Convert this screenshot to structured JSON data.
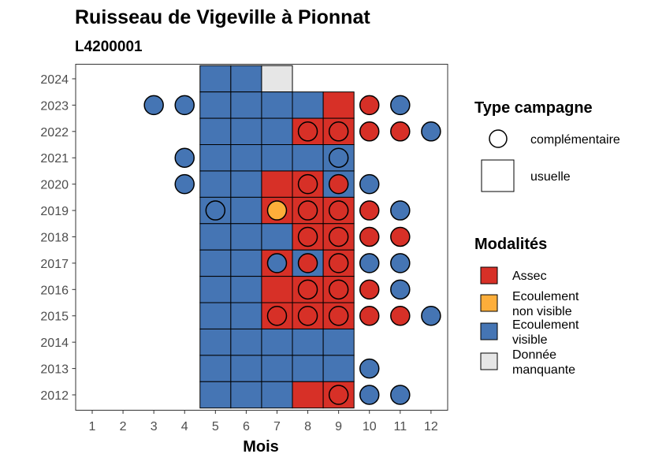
{
  "chart_data": {
    "type": "heatmap",
    "title": "Ruisseau de Vigeville à Pionnat",
    "subtitle": "L4200001",
    "xlabel": "Mois",
    "ylabel": "",
    "x_ticks": [
      "1",
      "2",
      "3",
      "4",
      "5",
      "6",
      "7",
      "8",
      "9",
      "10",
      "11",
      "12"
    ],
    "y_ticks": [
      "2012",
      "2013",
      "2014",
      "2015",
      "2016",
      "2017",
      "2018",
      "2019",
      "2020",
      "2021",
      "2022",
      "2023",
      "2024"
    ],
    "grid": false,
    "legend_position": "right",
    "colors": {
      "Assec": "#d73027",
      "Ecoulement non visible": "#fdae3a",
      "Ecoulement visible": "#4575b4",
      "Donnée manquante": "#e6e6e6"
    },
    "legend_shape": {
      "title": "Type campagne",
      "items": [
        "complémentaire",
        "usuelle"
      ]
    },
    "legend_fill": {
      "title": "Modalités",
      "items": [
        {
          "key": "Assec",
          "lines": [
            "Assec"
          ]
        },
        {
          "key": "Ecoulement non visible",
          "lines": [
            "Ecoulement",
            "non visible"
          ]
        },
        {
          "key": "Ecoulement visible",
          "lines": [
            "Ecoulement",
            "visible"
          ]
        },
        {
          "key": "Donnée manquante",
          "lines": [
            "Donnée",
            "manquante"
          ]
        }
      ]
    },
    "usuelle": [
      {
        "year": 2024,
        "month": 5,
        "value": "Ecoulement visible"
      },
      {
        "year": 2024,
        "month": 6,
        "value": "Ecoulement visible"
      },
      {
        "year": 2024,
        "month": 7,
        "value": "Donnée manquante"
      },
      {
        "year": 2023,
        "month": 5,
        "value": "Ecoulement visible"
      },
      {
        "year": 2023,
        "month": 6,
        "value": "Ecoulement visible"
      },
      {
        "year": 2023,
        "month": 7,
        "value": "Ecoulement visible"
      },
      {
        "year": 2023,
        "month": 8,
        "value": "Ecoulement visible"
      },
      {
        "year": 2023,
        "month": 9,
        "value": "Assec"
      },
      {
        "year": 2022,
        "month": 5,
        "value": "Ecoulement visible"
      },
      {
        "year": 2022,
        "month": 6,
        "value": "Ecoulement visible"
      },
      {
        "year": 2022,
        "month": 7,
        "value": "Ecoulement visible"
      },
      {
        "year": 2022,
        "month": 8,
        "value": "Assec"
      },
      {
        "year": 2022,
        "month": 9,
        "value": "Assec"
      },
      {
        "year": 2021,
        "month": 5,
        "value": "Ecoulement visible"
      },
      {
        "year": 2021,
        "month": 6,
        "value": "Ecoulement visible"
      },
      {
        "year": 2021,
        "month": 7,
        "value": "Ecoulement visible"
      },
      {
        "year": 2021,
        "month": 8,
        "value": "Ecoulement visible"
      },
      {
        "year": 2021,
        "month": 9,
        "value": "Ecoulement visible"
      },
      {
        "year": 2020,
        "month": 5,
        "value": "Ecoulement visible"
      },
      {
        "year": 2020,
        "month": 6,
        "value": "Ecoulement visible"
      },
      {
        "year": 2020,
        "month": 7,
        "value": "Assec"
      },
      {
        "year": 2020,
        "month": 8,
        "value": "Assec"
      },
      {
        "year": 2020,
        "month": 9,
        "value": "Ecoulement visible"
      },
      {
        "year": 2019,
        "month": 5,
        "value": "Ecoulement visible"
      },
      {
        "year": 2019,
        "month": 6,
        "value": "Ecoulement visible"
      },
      {
        "year": 2019,
        "month": 7,
        "value": "Assec"
      },
      {
        "year": 2019,
        "month": 8,
        "value": "Assec"
      },
      {
        "year": 2019,
        "month": 9,
        "value": "Assec"
      },
      {
        "year": 2018,
        "month": 5,
        "value": "Ecoulement visible"
      },
      {
        "year": 2018,
        "month": 6,
        "value": "Ecoulement visible"
      },
      {
        "year": 2018,
        "month": 7,
        "value": "Ecoulement visible"
      },
      {
        "year": 2018,
        "month": 8,
        "value": "Assec"
      },
      {
        "year": 2018,
        "month": 9,
        "value": "Assec"
      },
      {
        "year": 2017,
        "month": 5,
        "value": "Ecoulement visible"
      },
      {
        "year": 2017,
        "month": 6,
        "value": "Ecoulement visible"
      },
      {
        "year": 2017,
        "month": 7,
        "value": "Assec"
      },
      {
        "year": 2017,
        "month": 8,
        "value": "Ecoulement visible"
      },
      {
        "year": 2017,
        "month": 9,
        "value": "Assec"
      },
      {
        "year": 2016,
        "month": 5,
        "value": "Ecoulement visible"
      },
      {
        "year": 2016,
        "month": 6,
        "value": "Ecoulement visible"
      },
      {
        "year": 2016,
        "month": 7,
        "value": "Assec"
      },
      {
        "year": 2016,
        "month": 8,
        "value": "Assec"
      },
      {
        "year": 2016,
        "month": 9,
        "value": "Assec"
      },
      {
        "year": 2015,
        "month": 5,
        "value": "Ecoulement visible"
      },
      {
        "year": 2015,
        "month": 6,
        "value": "Ecoulement visible"
      },
      {
        "year": 2015,
        "month": 7,
        "value": "Assec"
      },
      {
        "year": 2015,
        "month": 8,
        "value": "Assec"
      },
      {
        "year": 2015,
        "month": 9,
        "value": "Assec"
      },
      {
        "year": 2014,
        "month": 5,
        "value": "Ecoulement visible"
      },
      {
        "year": 2014,
        "month": 6,
        "value": "Ecoulement visible"
      },
      {
        "year": 2014,
        "month": 7,
        "value": "Ecoulement visible"
      },
      {
        "year": 2014,
        "month": 8,
        "value": "Ecoulement visible"
      },
      {
        "year": 2014,
        "month": 9,
        "value": "Ecoulement visible"
      },
      {
        "year": 2013,
        "month": 5,
        "value": "Ecoulement visible"
      },
      {
        "year": 2013,
        "month": 6,
        "value": "Ecoulement visible"
      },
      {
        "year": 2013,
        "month": 7,
        "value": "Ecoulement visible"
      },
      {
        "year": 2013,
        "month": 8,
        "value": "Ecoulement visible"
      },
      {
        "year": 2013,
        "month": 9,
        "value": "Ecoulement visible"
      },
      {
        "year": 2012,
        "month": 5,
        "value": "Ecoulement visible"
      },
      {
        "year": 2012,
        "month": 6,
        "value": "Ecoulement visible"
      },
      {
        "year": 2012,
        "month": 7,
        "value": "Ecoulement visible"
      },
      {
        "year": 2012,
        "month": 8,
        "value": "Assec"
      },
      {
        "year": 2012,
        "month": 9,
        "value": "Assec"
      }
    ],
    "complementaire": [
      {
        "year": 2023,
        "month": 3,
        "value": "Ecoulement visible"
      },
      {
        "year": 2023,
        "month": 4,
        "value": "Ecoulement visible"
      },
      {
        "year": 2023,
        "month": 10,
        "value": "Assec"
      },
      {
        "year": 2023,
        "month": 11,
        "value": "Ecoulement visible"
      },
      {
        "year": 2022,
        "month": 8,
        "value": "Assec"
      },
      {
        "year": 2022,
        "month": 9,
        "value": "Assec"
      },
      {
        "year": 2022,
        "month": 10,
        "value": "Assec"
      },
      {
        "year": 2022,
        "month": 11,
        "value": "Assec"
      },
      {
        "year": 2022,
        "month": 12,
        "value": "Ecoulement visible"
      },
      {
        "year": 2021,
        "month": 4,
        "value": "Ecoulement visible"
      },
      {
        "year": 2021,
        "month": 9,
        "value": "Ecoulement visible"
      },
      {
        "year": 2020,
        "month": 4,
        "value": "Ecoulement visible"
      },
      {
        "year": 2020,
        "month": 8,
        "value": "Assec"
      },
      {
        "year": 2020,
        "month": 9,
        "value": "Assec"
      },
      {
        "year": 2020,
        "month": 10,
        "value": "Ecoulement visible"
      },
      {
        "year": 2019,
        "month": 5,
        "value": "Ecoulement visible"
      },
      {
        "year": 2019,
        "month": 7,
        "value": "Ecoulement non visible"
      },
      {
        "year": 2019,
        "month": 8,
        "value": "Assec"
      },
      {
        "year": 2019,
        "month": 9,
        "value": "Assec"
      },
      {
        "year": 2019,
        "month": 10,
        "value": "Assec"
      },
      {
        "year": 2019,
        "month": 11,
        "value": "Ecoulement visible"
      },
      {
        "year": 2018,
        "month": 8,
        "value": "Assec"
      },
      {
        "year": 2018,
        "month": 9,
        "value": "Assec"
      },
      {
        "year": 2018,
        "month": 10,
        "value": "Assec"
      },
      {
        "year": 2018,
        "month": 11,
        "value": "Assec"
      },
      {
        "year": 2017,
        "month": 7,
        "value": "Ecoulement visible"
      },
      {
        "year": 2017,
        "month": 8,
        "value": "Assec"
      },
      {
        "year": 2017,
        "month": 9,
        "value": "Assec"
      },
      {
        "year": 2017,
        "month": 10,
        "value": "Ecoulement visible"
      },
      {
        "year": 2017,
        "month": 11,
        "value": "Ecoulement visible"
      },
      {
        "year": 2016,
        "month": 8,
        "value": "Assec"
      },
      {
        "year": 2016,
        "month": 9,
        "value": "Assec"
      },
      {
        "year": 2016,
        "month": 10,
        "value": "Assec"
      },
      {
        "year": 2016,
        "month": 11,
        "value": "Ecoulement visible"
      },
      {
        "year": 2015,
        "month": 7,
        "value": "Assec"
      },
      {
        "year": 2015,
        "month": 8,
        "value": "Assec"
      },
      {
        "year": 2015,
        "month": 9,
        "value": "Assec"
      },
      {
        "year": 2015,
        "month": 10,
        "value": "Assec"
      },
      {
        "year": 2015,
        "month": 11,
        "value": "Assec"
      },
      {
        "year": 2015,
        "month": 12,
        "value": "Ecoulement visible"
      },
      {
        "year": 2013,
        "month": 10,
        "value": "Ecoulement visible"
      },
      {
        "year": 2012,
        "month": 9,
        "value": "Assec"
      },
      {
        "year": 2012,
        "month": 10,
        "value": "Ecoulement visible"
      },
      {
        "year": 2012,
        "month": 11,
        "value": "Ecoulement visible"
      }
    ]
  }
}
